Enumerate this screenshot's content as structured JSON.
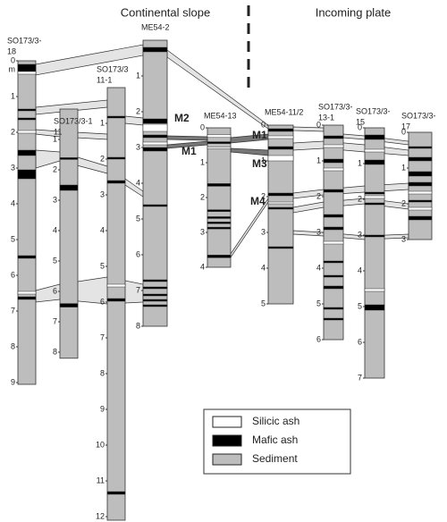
{
  "header": {
    "left": "Continental slope",
    "right": "Incoming plate"
  },
  "cores": [
    {
      "name": [
        "SO173/3-",
        "18"
      ],
      "ticks": [
        "0",
        "1",
        "2",
        "3",
        "4",
        "5",
        "6",
        "7",
        "8",
        "9"
      ],
      "unit": "m"
    },
    {
      "name": [
        "SO173/3-1",
        "11"
      ],
      "ticks": [
        "1",
        "2",
        "3",
        "4",
        "5",
        "6",
        "7",
        "8"
      ]
    },
    {
      "name": [
        "SO173/3",
        "11-1"
      ],
      "ticks": [
        "1",
        "2",
        "3",
        "4",
        "5",
        "6",
        "7",
        "8",
        "9",
        "10",
        "11",
        "12"
      ]
    },
    {
      "name": [
        "ME54-2"
      ],
      "ticks": [
        "1",
        "2",
        "3",
        "4",
        "5",
        "6",
        "7",
        "8"
      ]
    },
    {
      "name": [
        "ME54-13"
      ],
      "ticks": [
        "0",
        "1",
        "2",
        "3",
        "4"
      ]
    },
    {
      "name": [
        "ME54-11/2"
      ],
      "ticks": [
        "0",
        "1",
        "2",
        "3",
        "4",
        "5"
      ]
    },
    {
      "name": [
        "SO173/3-",
        "13-1"
      ],
      "ticks": [
        "0",
        "1",
        "2",
        "3",
        "4",
        "5",
        "6"
      ]
    },
    {
      "name": [
        "SO173/3-",
        "15"
      ],
      "ticks": [
        "0",
        "1",
        "2",
        "3",
        "4",
        "5",
        "6",
        "7"
      ]
    },
    {
      "name": [
        "SO173/3-",
        "17"
      ],
      "ticks": [
        "0",
        "1",
        "2",
        "3"
      ]
    }
  ],
  "markers": [
    "M2",
    "M1",
    "M1",
    "M3",
    "M4"
  ],
  "legend": [
    "Silicic ash",
    "Mafic ash",
    "Sediment"
  ]
}
